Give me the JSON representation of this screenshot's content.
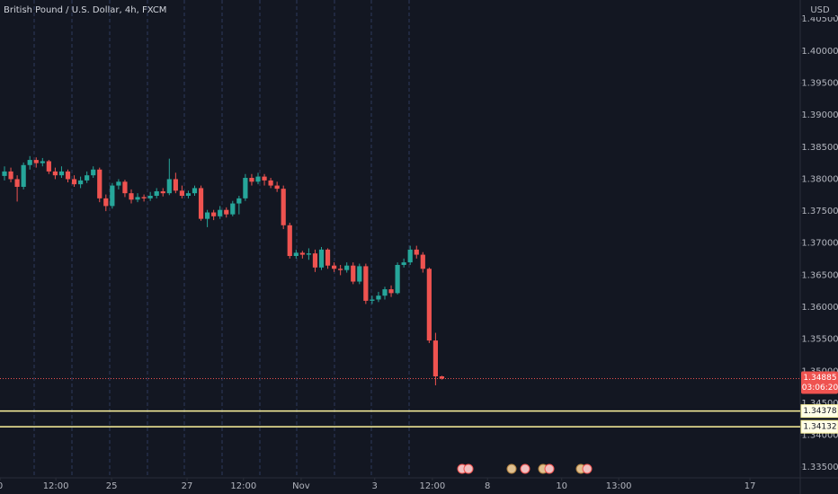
{
  "chart_data": {
    "type": "candlestick",
    "title": "British Pound / U.S. Dollar, 4h, FXCM",
    "currency": "USD",
    "up_color": "#26a69a",
    "down_color": "#ef5350",
    "categories": [
      null,
      null,
      null,
      null,
      null,
      null,
      null,
      null,
      null,
      null,
      null,
      null,
      null,
      null,
      null,
      null,
      null,
      null,
      null,
      null,
      null,
      null,
      null,
      null,
      null,
      null,
      null,
      null,
      null,
      null,
      null,
      null,
      null,
      null,
      null,
      null,
      null,
      null,
      null,
      null,
      null,
      null,
      null,
      null,
      null,
      null,
      null,
      null,
      null,
      null,
      null,
      null,
      null,
      null,
      null,
      null,
      null,
      null,
      null,
      null,
      null,
      null,
      null,
      null,
      null,
      null,
      null,
      null,
      null,
      null
    ],
    "open": [
      1.3805,
      1.3812,
      1.38,
      1.3788,
      1.3822,
      1.383,
      1.3825,
      1.3828,
      1.3812,
      1.3806,
      1.3812,
      1.38,
      1.3792,
      1.3798,
      1.3806,
      1.3815,
      1.377,
      1.3758,
      1.379,
      1.3796,
      1.3778,
      1.3768,
      1.3772,
      1.377,
      1.3774,
      1.3781,
      1.3778,
      1.38,
      1.3782,
      1.3774,
      1.3778,
      1.3786,
      1.3738,
      1.3748,
      1.3742,
      1.3752,
      1.3745,
      1.3762,
      1.377,
      1.3802,
      1.3796,
      1.3804,
      1.3798,
      1.379,
      1.3785,
      1.3728,
      1.368,
      1.3685,
      1.3682,
      1.3684,
      1.3662,
      1.369,
      1.3665,
      1.366,
      1.3658,
      1.3665,
      1.364,
      1.3664,
      1.361,
      1.3612,
      1.3618,
      1.3628,
      1.3622,
      1.3666,
      1.367,
      1.369,
      1.3682,
      1.366,
      1.3548,
      1.3492
    ],
    "high": [
      1.382,
      1.3818,
      1.3806,
      1.3826,
      1.3836,
      1.3834,
      1.3833,
      1.383,
      1.3818,
      1.382,
      1.3815,
      1.3806,
      1.3804,
      1.3812,
      1.382,
      1.3818,
      1.3776,
      1.3794,
      1.38,
      1.3799,
      1.3784,
      1.3778,
      1.3776,
      1.378,
      1.3786,
      1.3786,
      1.3832,
      1.381,
      1.379,
      1.3782,
      1.379,
      1.379,
      1.3752,
      1.3752,
      1.3758,
      1.3756,
      1.3766,
      1.3774,
      1.3808,
      1.3808,
      1.381,
      1.3808,
      1.3802,
      1.3796,
      1.379,
      1.3732,
      1.369,
      1.3688,
      1.3692,
      1.369,
      1.3694,
      1.3692,
      1.367,
      1.3666,
      1.367,
      1.367,
      1.3668,
      1.3668,
      1.3618,
      1.3624,
      1.3632,
      1.3634,
      1.367,
      1.3676,
      1.3696,
      1.3696,
      1.3686,
      1.3662,
      1.356,
      1.3493
    ],
    "low": [
      1.3798,
      1.3795,
      1.3765,
      1.3784,
      1.3815,
      1.3818,
      1.382,
      1.3808,
      1.38,
      1.3802,
      1.3795,
      1.3788,
      1.3786,
      1.3794,
      1.3802,
      1.3764,
      1.375,
      1.3754,
      1.3784,
      1.3772,
      1.3762,
      1.3764,
      1.3765,
      1.3766,
      1.377,
      1.3773,
      1.3775,
      1.3778,
      1.377,
      1.377,
      1.3774,
      1.3735,
      1.3725,
      1.3736,
      1.3738,
      1.374,
      1.3742,
      1.3745,
      1.3766,
      1.379,
      1.3792,
      1.379,
      1.3786,
      1.378,
      1.3722,
      1.3676,
      1.3676,
      1.3676,
      1.3674,
      1.3655,
      1.3658,
      1.366,
      1.3655,
      1.365,
      1.3654,
      1.3636,
      1.3636,
      1.3605,
      1.3605,
      1.3608,
      1.3612,
      1.3616,
      1.362,
      1.3662,
      1.3666,
      1.3676,
      1.3654,
      1.3544,
      1.3478,
      1.3487
    ],
    "close": [
      1.3812,
      1.38,
      1.3788,
      1.3822,
      1.383,
      1.3825,
      1.3828,
      1.3812,
      1.3806,
      1.3812,
      1.38,
      1.3792,
      1.3798,
      1.3806,
      1.3815,
      1.377,
      1.3758,
      1.379,
      1.3796,
      1.3778,
      1.3768,
      1.3772,
      1.377,
      1.3774,
      1.3781,
      1.3778,
      1.38,
      1.3782,
      1.3774,
      1.3778,
      1.3786,
      1.3738,
      1.3748,
      1.3742,
      1.3752,
      1.3745,
      1.3762,
      1.377,
      1.3802,
      1.3796,
      1.3804,
      1.3798,
      1.379,
      1.3785,
      1.3728,
      1.368,
      1.3685,
      1.3682,
      1.3684,
      1.3662,
      1.369,
      1.3665,
      1.366,
      1.3658,
      1.3665,
      1.364,
      1.3664,
      1.361,
      1.3612,
      1.3618,
      1.3628,
      1.3622,
      1.3666,
      1.367,
      1.369,
      1.3682,
      1.366,
      1.3548,
      1.3492,
      1.34885
    ],
    "ylim": [
      1.33335,
      1.40798
    ],
    "yticks": [
      {
        "value": 1.335,
        "label": "1.33500"
      },
      {
        "value": 1.34,
        "label": "1.34000"
      },
      {
        "value": 1.345,
        "label": "1.34500"
      },
      {
        "value": 1.35,
        "label": "1.35000"
      },
      {
        "value": 1.355,
        "label": "1.35500"
      },
      {
        "value": 1.36,
        "label": "1.36000"
      },
      {
        "value": 1.365,
        "label": "1.36500"
      },
      {
        "value": 1.37,
        "label": "1.37000"
      },
      {
        "value": 1.375,
        "label": "1.37500"
      },
      {
        "value": 1.38,
        "label": "1.38000"
      },
      {
        "value": 1.385,
        "label": "1.38500"
      },
      {
        "value": 1.39,
        "label": "1.39000"
      },
      {
        "value": 1.395,
        "label": "1.39500"
      },
      {
        "value": 1.4,
        "label": "1.40000"
      },
      {
        "value": 1.405,
        "label": "1.40500"
      }
    ],
    "xticks": [
      {
        "value": -0.7,
        "label": "0"
      },
      {
        "value": 8.1,
        "label": "12:00"
      },
      {
        "value": 16.9,
        "label": "25"
      },
      {
        "value": 28.8,
        "label": "27"
      },
      {
        "value": 37.7,
        "label": "12:00"
      },
      {
        "value": 46.8,
        "label": "Nov"
      },
      {
        "value": 58.4,
        "label": "3"
      },
      {
        "value": 67.5,
        "label": "12:00"
      },
      {
        "value": 76.2,
        "label": "8"
      },
      {
        "value": 87.9,
        "label": "10"
      },
      {
        "value": 96.9,
        "label": "13:00"
      },
      {
        "value": 117.6,
        "label": "17"
      }
    ],
    "last_price": 1.34885,
    "countdown": "03:06:20",
    "price_lines": [
      {
        "value": 1.34378,
        "color": "#fff59d"
      },
      {
        "value": 1.34132,
        "color": "#fff59d"
      }
    ]
  }
}
